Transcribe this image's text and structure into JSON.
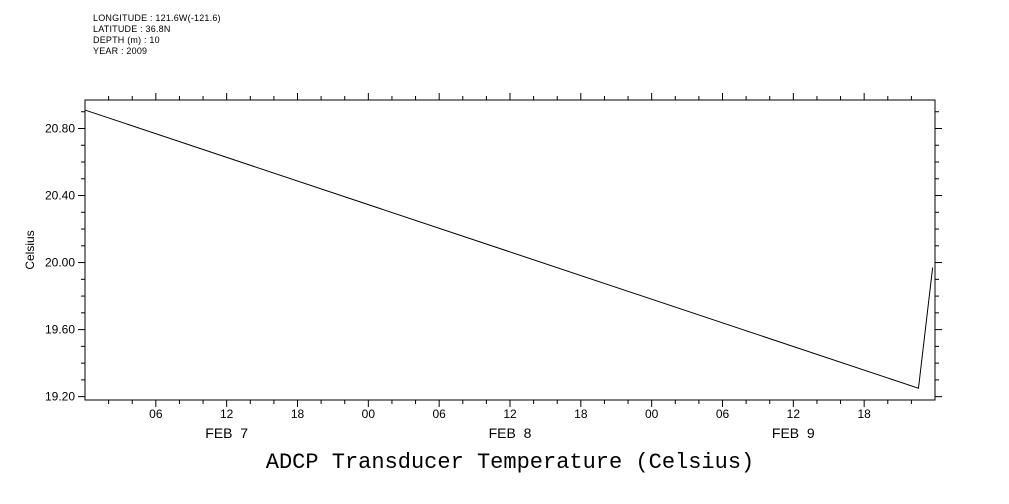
{
  "header": {
    "lines": [
      "LONGITUDE : 121.6W(-121.6)",
      "LATITUDE : 36.8N",
      "DEPTH (m) : 10",
      "YEAR : 2009"
    ]
  },
  "title": "ADCP Transducer Temperature (Celsius)",
  "chart_data": {
    "type": "line",
    "title": "ADCP Transducer Temperature (Celsius)",
    "ylabel": "Celsius",
    "xlabel": "",
    "ylim": [
      19.18,
      20.97
    ],
    "yticks": [
      19.2,
      19.6,
      20.0,
      20.4,
      20.8
    ],
    "ytick_labels": [
      "19.20",
      "19.60",
      "20.00",
      "20.40",
      "20.80"
    ],
    "y_minor_step": 0.1,
    "xlim_hours": [
      0,
      72
    ],
    "xticks_hours": [
      6,
      12,
      18,
      24,
      30,
      36,
      42,
      48,
      54,
      60,
      66
    ],
    "xtick_labels": [
      "06",
      "12",
      "18",
      "00",
      "06",
      "12",
      "18",
      "00",
      "06",
      "12",
      "18"
    ],
    "x_minor_step_hours": 2,
    "date_labels": [
      {
        "label": "FEB  7",
        "hour": 12
      },
      {
        "label": "FEB  8",
        "hour": 36
      },
      {
        "label": "FEB  9",
        "hour": 60
      }
    ],
    "grid": false,
    "legend": false,
    "line_color": "#000000",
    "background": "#ffffff",
    "series": [
      {
        "name": "ADCP transducer temperature",
        "x_hours": [
          0,
          70.6,
          71.8
        ],
        "values": [
          20.91,
          19.25,
          19.97
        ]
      }
    ]
  }
}
